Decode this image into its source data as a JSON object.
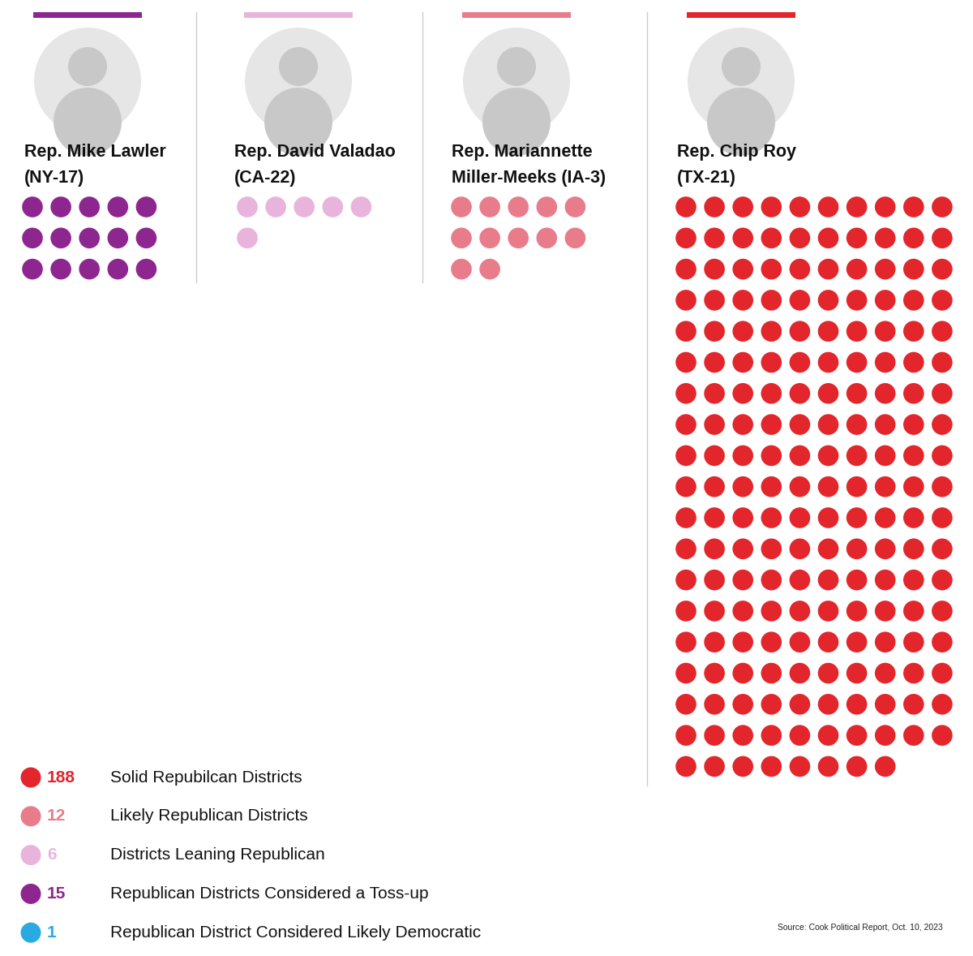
{
  "chart_data": {
    "type": "waffle",
    "series": [
      {
        "name": "Solid Repubilcan Districts",
        "color": "#e3262b",
        "value": 188
      },
      {
        "name": "Likely Republican Districts",
        "color": "#e87c8a",
        "value": 12
      },
      {
        "name": "Districts Leaning Republican",
        "color": "#e8b4dc",
        "value": 6
      },
      {
        "name": "Republican Districts Considered a Toss-up",
        "color": "#8e2690",
        "value": 15
      },
      {
        "name": "Republican District Considered Likely Democratic",
        "color": "#29abe2",
        "value": 1
      }
    ],
    "panels": [
      {
        "representative": [
          "Rep. Mike Lawler",
          "(NY-17)"
        ],
        "series": "Republican Districts Considered a Toss-up"
      },
      {
        "representative": [
          "Rep. David Valadao",
          "(CA-22)"
        ],
        "series": "Districts Leaning Republican"
      },
      {
        "representative": [
          "Rep. Mariannette",
          "Miller-Meeks (IA-3)"
        ],
        "series": "Likely Republican Districts"
      },
      {
        "representative": [
          "Rep. Chip Roy",
          "(TX-21)"
        ],
        "series": "Solid Repubilcan Districts"
      }
    ],
    "source": "Source: Cook Political Report, Oct. 10, 2023"
  }
}
